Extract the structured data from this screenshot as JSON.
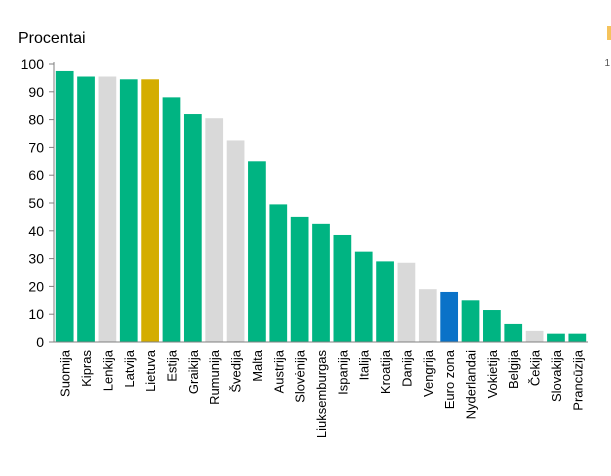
{
  "chart_data": {
    "type": "bar",
    "ylabel": "Procentai",
    "ylim": [
      0,
      100
    ],
    "yticks": [
      0,
      10,
      20,
      30,
      40,
      50,
      60,
      70,
      80,
      90,
      100
    ],
    "categories": [
      "Suomija",
      "Kipras",
      "Lenkija",
      "Latvija",
      "Lietuva",
      "Estija",
      "Graikija",
      "Rumunija",
      "Švedija",
      "Malta",
      "Austrija",
      "Slovėnija",
      "Liuksemburgas",
      "Ispanija",
      "Italija",
      "Kroatija",
      "Danija",
      "Vengrija",
      "Euro zona",
      "Nyderlandai",
      "Vokietija",
      "Belgija",
      "Čekija",
      "Slovakija",
      "Prancūzija"
    ],
    "values": [
      97.5,
      95.5,
      95.5,
      94.5,
      94.5,
      88,
      82,
      80.5,
      72.5,
      65,
      49.5,
      45,
      42.5,
      38.5,
      32.5,
      29,
      28.5,
      19,
      18,
      15,
      11.5,
      6.5,
      4,
      3,
      3
    ],
    "bar_colors": [
      "#00b482",
      "#00b482",
      "#d9d9d9",
      "#00b482",
      "#d4ad00",
      "#00b482",
      "#00b482",
      "#d9d9d9",
      "#d9d9d9",
      "#00b482",
      "#00b482",
      "#00b482",
      "#00b482",
      "#00b482",
      "#00b482",
      "#00b482",
      "#d9d9d9",
      "#d9d9d9",
      "#0a72c8",
      "#00b482",
      "#00b482",
      "#00b482",
      "#d9d9d9",
      "#00b482",
      "#00b482"
    ],
    "grid": false
  },
  "colors": {
    "eu_member_euro": "#00b482",
    "non_euro": "#d9d9d9",
    "lithuania": "#d4ad00",
    "euro_area": "#0a72c8",
    "axis": "#808080"
  },
  "edge_text": "1"
}
